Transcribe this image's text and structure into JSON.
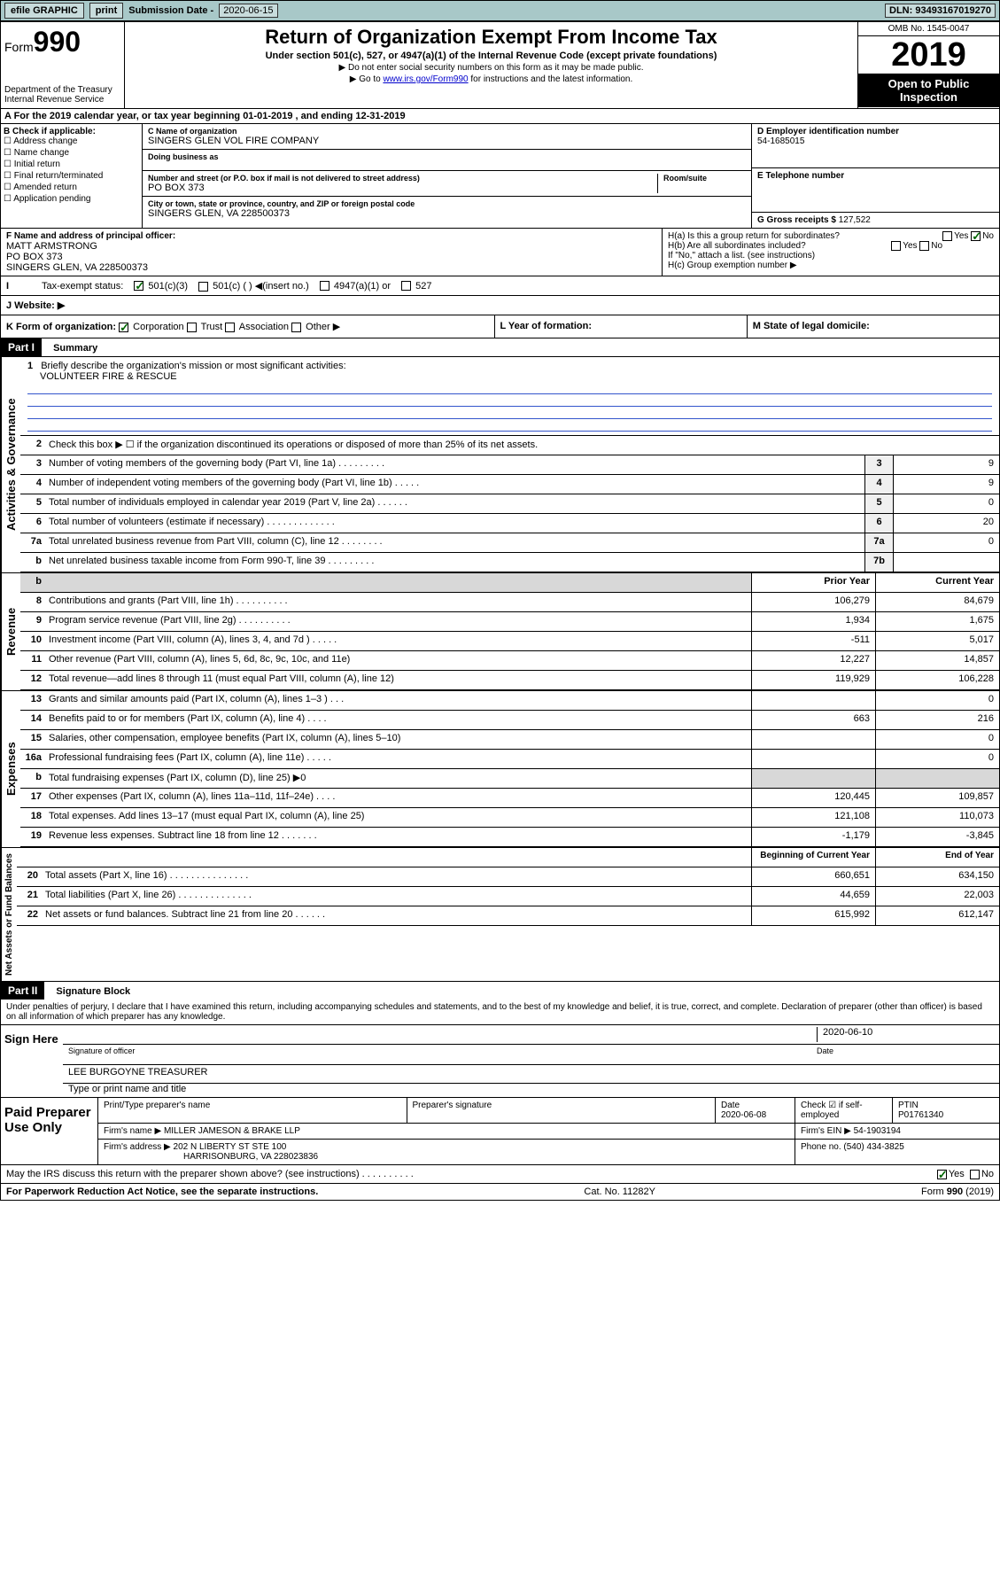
{
  "topbar": {
    "efile": "efile GRAPHIC",
    "print": "print",
    "sub_label": "Submission Date - ",
    "sub_date": "2020-06-15",
    "dln": "DLN: 93493167019270"
  },
  "header": {
    "form_word": "Form",
    "form_num": "990",
    "dept1": "Department of the Treasury",
    "dept2": "Internal Revenue Service",
    "title": "Return of Organization Exempt From Income Tax",
    "sub": "Under section 501(c), 527, or 4947(a)(1) of the Internal Revenue Code (except private foundations)",
    "note1": "▶ Do not enter social security numbers on this form as it may be made public.",
    "note2_pre": "▶ Go to ",
    "note2_link": "www.irs.gov/Form990",
    "note2_post": " for instructions and the latest information.",
    "omb": "OMB No. 1545-0047",
    "year": "2019",
    "open1": "Open to Public",
    "open2": "Inspection"
  },
  "a_row": "A For the 2019 calendar year, or tax year beginning 01-01-2019   , and ending 12-31-2019",
  "b": {
    "label": "B Check if applicable:",
    "opts": [
      "Address change",
      "Name change",
      "Initial return",
      "Final return/terminated",
      "Amended return",
      "Application pending"
    ]
  },
  "c": {
    "name_label": "C Name of organization",
    "name": "SINGERS GLEN VOL FIRE COMPANY",
    "dba_label": "Doing business as",
    "addr_label": "Number and street (or P.O. box if mail is not delivered to street address)",
    "room_label": "Room/suite",
    "addr": "PO BOX 373",
    "city_label": "City or town, state or province, country, and ZIP or foreign postal code",
    "city": "SINGERS GLEN, VA  228500373"
  },
  "d": {
    "label": "D Employer identification number",
    "value": "54-1685015"
  },
  "e": {
    "label": "E Telephone number",
    "value": ""
  },
  "g": {
    "label": "G Gross receipts $ ",
    "value": "127,522"
  },
  "f": {
    "label": "F  Name and address of principal officer:",
    "name": "MATT ARMSTRONG",
    "addr1": "PO BOX 373",
    "addr2": "SINGERS GLEN, VA  228500373"
  },
  "h": {
    "a": "H(a)  Is this a group return for subordinates?",
    "b": "H(b)  Are all subordinates included?",
    "note": "If \"No,\" attach a list. (see instructions)",
    "c": "H(c)  Group exemption number ▶",
    "yes": "Yes",
    "no": "No"
  },
  "i": {
    "label": "Tax-exempt status:",
    "o1": "501(c)(3)",
    "o2": "501(c) (  ) ◀(insert no.)",
    "o3": "4947(a)(1) or",
    "o4": "527"
  },
  "j": {
    "label": "J   Website: ▶"
  },
  "k": {
    "label": "K Form of organization:",
    "o1": "Corporation",
    "o2": "Trust",
    "o3": "Association",
    "o4": "Other ▶",
    "l": "L Year of formation:",
    "m": "M State of legal domicile:"
  },
  "part1": {
    "label": "Part I",
    "title": "Summary",
    "vert1": "Activities & Governance",
    "vert2": "Revenue",
    "vert3": "Expenses",
    "vert4": "Net Assets or Fund Balances",
    "q1": "Briefly describe the organization's mission or most significant activities:",
    "mission": "VOLUNTEER FIRE & RESCUE",
    "q2": "Check this box ▶ ☐  if the organization discontinued its operations or disposed of more than 25% of its net assets.",
    "lines_gov": [
      {
        "n": "3",
        "d": "Number of voting members of the governing body (Part VI, line 1a)  .  .  .  .  .  .  .  .  .",
        "b": "3",
        "v": "9"
      },
      {
        "n": "4",
        "d": "Number of independent voting members of the governing body (Part VI, line 1b)  .  .  .  .  .",
        "b": "4",
        "v": "9"
      },
      {
        "n": "5",
        "d": "Total number of individuals employed in calendar year 2019 (Part V, line 2a)  .  .  .  .  .  .",
        "b": "5",
        "v": "0"
      },
      {
        "n": "6",
        "d": "Total number of volunteers (estimate if necessary)  .  .  .  .  .  .  .  .  .  .  .  .  .",
        "b": "6",
        "v": "20"
      },
      {
        "n": "7a",
        "d": "Total unrelated business revenue from Part VIII, column (C), line 12  .  .  .  .  .  .  .  .",
        "b": "7a",
        "v": "0"
      },
      {
        "n": "b",
        "d": "Net unrelated business taxable income from Form 990-T, line 39  .  .  .  .  .  .  .  .  .",
        "b": "7b",
        "v": ""
      }
    ],
    "col_prior": "Prior Year",
    "col_current": "Current Year",
    "lines_rev": [
      {
        "n": "8",
        "d": "Contributions and grants (Part VIII, line 1h)  .  .  .  .  .  .  .  .  .  .",
        "p": "106,279",
        "c": "84,679"
      },
      {
        "n": "9",
        "d": "Program service revenue (Part VIII, line 2g)  .  .  .  .  .  .  .  .  .  .",
        "p": "1,934",
        "c": "1,675"
      },
      {
        "n": "10",
        "d": "Investment income (Part VIII, column (A), lines 3, 4, and 7d )  .  .  .  .  .",
        "p": "-511",
        "c": "5,017"
      },
      {
        "n": "11",
        "d": "Other revenue (Part VIII, column (A), lines 5, 6d, 8c, 9c, 10c, and 11e)",
        "p": "12,227",
        "c": "14,857"
      },
      {
        "n": "12",
        "d": "Total revenue—add lines 8 through 11 (must equal Part VIII, column (A), line 12)",
        "p": "119,929",
        "c": "106,228"
      }
    ],
    "lines_exp": [
      {
        "n": "13",
        "d": "Grants and similar amounts paid (Part IX, column (A), lines 1–3 )  .  .  .",
        "p": "",
        "c": "0"
      },
      {
        "n": "14",
        "d": "Benefits paid to or for members (Part IX, column (A), line 4)  .  .  .  .",
        "p": "663",
        "c": "216"
      },
      {
        "n": "15",
        "d": "Salaries, other compensation, employee benefits (Part IX, column (A), lines 5–10)",
        "p": "",
        "c": "0"
      },
      {
        "n": "16a",
        "d": "Professional fundraising fees (Part IX, column (A), line 11e)  .  .  .  .  .",
        "p": "",
        "c": "0"
      },
      {
        "n": "b",
        "d": "Total fundraising expenses (Part IX, column (D), line 25) ▶0",
        "p": "",
        "c": "",
        "gray": true
      },
      {
        "n": "17",
        "d": "Other expenses (Part IX, column (A), lines 11a–11d, 11f–24e)  .  .  .  .",
        "p": "120,445",
        "c": "109,857"
      },
      {
        "n": "18",
        "d": "Total expenses. Add lines 13–17 (must equal Part IX, column (A), line 25)",
        "p": "121,108",
        "c": "110,073"
      },
      {
        "n": "19",
        "d": "Revenue less expenses. Subtract line 18 from line 12  .  .  .  .  .  .  .",
        "p": "-1,179",
        "c": "-3,845"
      }
    ],
    "col_begin": "Beginning of Current Year",
    "col_end": "End of Year",
    "lines_net": [
      {
        "n": "20",
        "d": "Total assets (Part X, line 16)  .  .  .  .  .  .  .  .  .  .  .  .  .  .  .",
        "p": "660,651",
        "c": "634,150"
      },
      {
        "n": "21",
        "d": "Total liabilities (Part X, line 26)  .  .  .  .  .  .  .  .  .  .  .  .  .  .",
        "p": "44,659",
        "c": "22,003"
      },
      {
        "n": "22",
        "d": "Net assets or fund balances. Subtract line 21 from line 20  .  .  .  .  .  .",
        "p": "615,992",
        "c": "612,147"
      }
    ]
  },
  "part2": {
    "label": "Part II",
    "title": "Signature Block"
  },
  "perjury": "Under penalties of perjury, I declare that I have examined this return, including accompanying schedules and statements, and to the best of my knowledge and belief, it is true, correct, and complete. Declaration of preparer (other than officer) is based on all information of which preparer has any knowledge.",
  "sign": {
    "label": "Sign Here",
    "sig_label": "Signature of officer",
    "date": "2020-06-10",
    "date_label": "Date",
    "name": "LEE BURGOYNE TREASURER",
    "name_label": "Type or print name and title"
  },
  "paid": {
    "label": "Paid Preparer Use Only",
    "h_name": "Print/Type preparer's name",
    "h_sig": "Preparer's signature",
    "h_date": "Date",
    "date": "2020-06-08",
    "h_chk": "Check ☑ if self-employed",
    "h_ptin": "PTIN",
    "ptin": "P01761340",
    "firm_label": "Firm's name    ▶",
    "firm": "MILLER JAMESON & BRAKE LLP",
    "ein_label": "Firm's EIN ▶",
    "ein": "54-1903194",
    "addr_label": "Firm's address ▶",
    "addr1": "202 N LIBERTY ST STE 100",
    "addr2": "HARRISONBURG, VA  228023836",
    "phone_label": "Phone no.",
    "phone": "(540) 434-3825"
  },
  "discuss": {
    "q": "May the IRS discuss this return with the preparer shown above? (see instructions)  .  .  .  .  .  .  .  .  .  .",
    "yes": "Yes",
    "no": "No"
  },
  "footer": {
    "left": "For Paperwork Reduction Act Notice, see the separate instructions.",
    "mid": "Cat. No. 11282Y",
    "right": "Form 990 (2019)"
  }
}
